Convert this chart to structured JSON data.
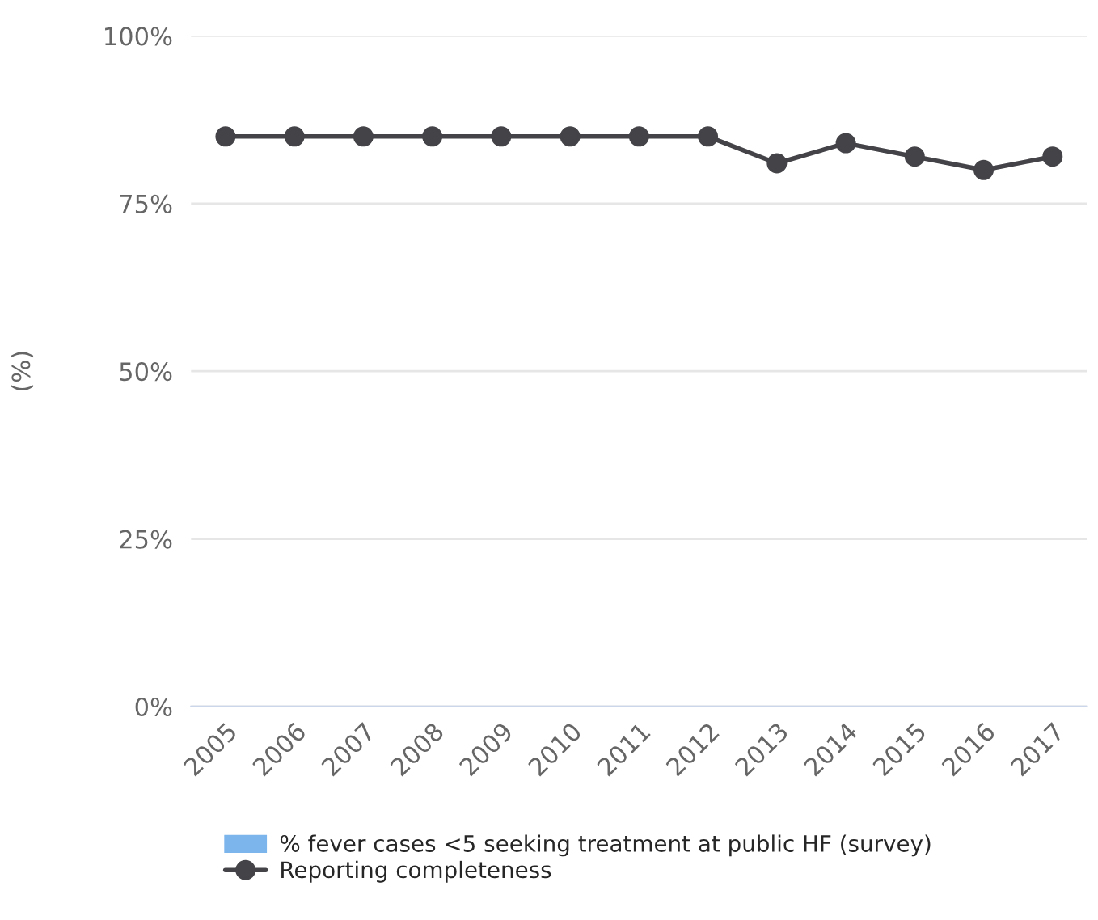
{
  "chart_data": {
    "type": "line",
    "ylabel": "(%)",
    "categories": [
      "2005",
      "2006",
      "2007",
      "2008",
      "2009",
      "2010",
      "2011",
      "2012",
      "2013",
      "2014",
      "2015",
      "2016",
      "2017"
    ],
    "series": [
      {
        "name": "% fever cases <5 seeking treatment at public HF (survey)",
        "type": "bar",
        "color": "#7cb5ec",
        "values": [
          null,
          null,
          null,
          null,
          null,
          null,
          null,
          null,
          null,
          null,
          null,
          null,
          null
        ]
      },
      {
        "name": "Reporting completeness",
        "color": "#434348",
        "values": [
          85,
          85,
          85,
          85,
          85,
          85,
          85,
          85,
          81,
          84,
          82,
          80,
          82
        ]
      }
    ],
    "ylim": [
      0,
      100
    ],
    "yticks": [
      {
        "value": 0,
        "label": "0%"
      },
      {
        "value": 25,
        "label": "25%"
      },
      {
        "value": 50,
        "label": "50%"
      },
      {
        "value": 75,
        "label": "75%"
      },
      {
        "value": 100,
        "label": "100%"
      }
    ],
    "grid": "y",
    "legend": "bottom",
    "marker": "circle",
    "line_style": "solid"
  }
}
